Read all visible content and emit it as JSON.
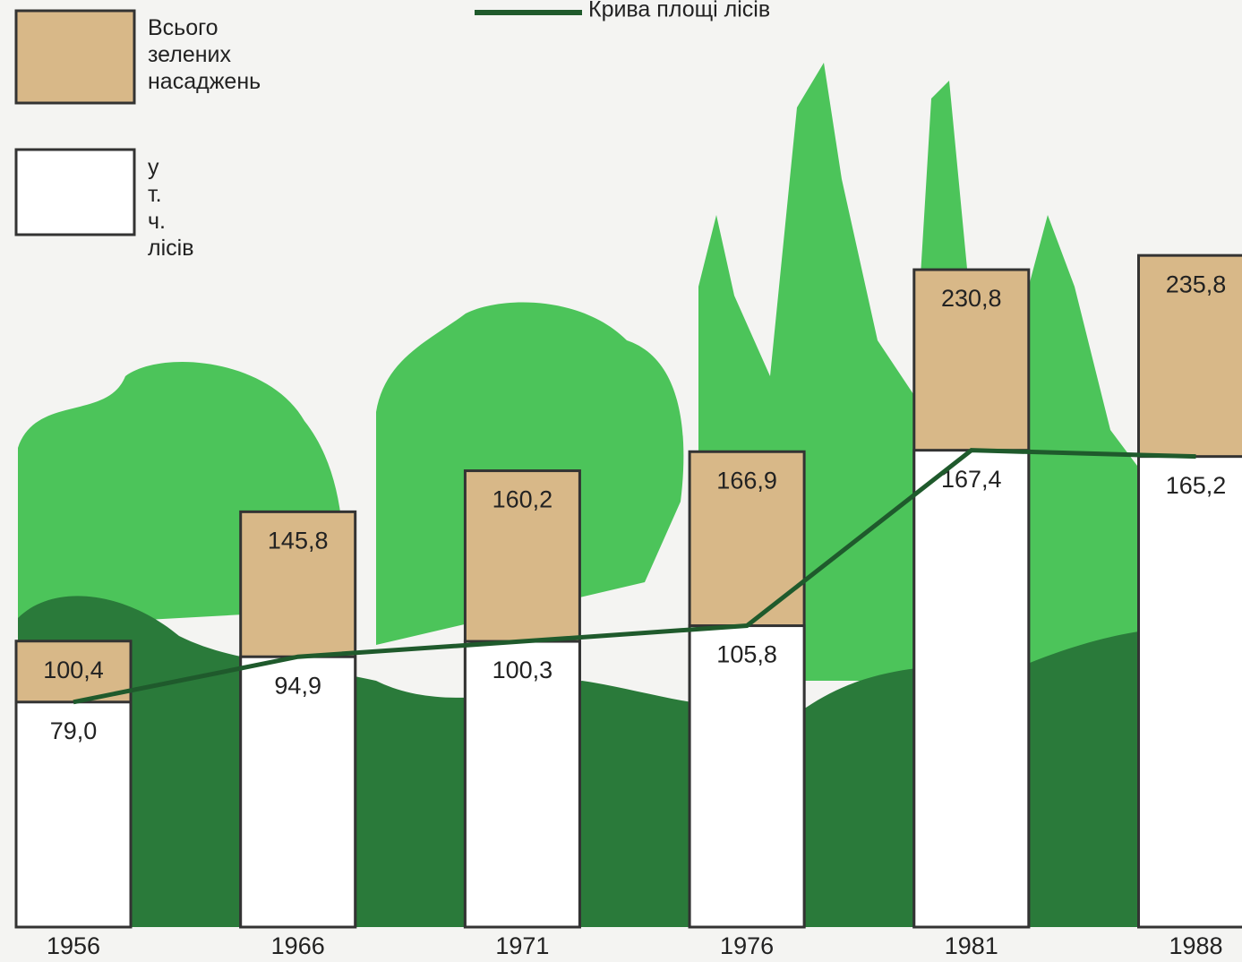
{
  "chart_data": {
    "type": "bar",
    "title": "Крива площі лісів",
    "categories": [
      "1956",
      "1966",
      "1971",
      "1976",
      "1981",
      "1988"
    ],
    "series": [
      {
        "name": "Всього зелених насаджень",
        "color": "#d8b888",
        "values": [
          100.4,
          145.8,
          160.2,
          166.9,
          230.8,
          235.8
        ],
        "value_labels": [
          "100,4",
          "145,8",
          "160,2",
          "166,9",
          "230,8",
          "235,8"
        ]
      },
      {
        "name": "у т. ч. лісів",
        "color": "#ffffff",
        "values": [
          79.0,
          94.9,
          100.3,
          105.8,
          167.4,
          165.2
        ],
        "value_labels": [
          "79,0",
          "94,9",
          "100,3",
          "105,8",
          "167,4",
          "165,2"
        ]
      }
    ],
    "line_color": "#1f5a2c"
  }
}
